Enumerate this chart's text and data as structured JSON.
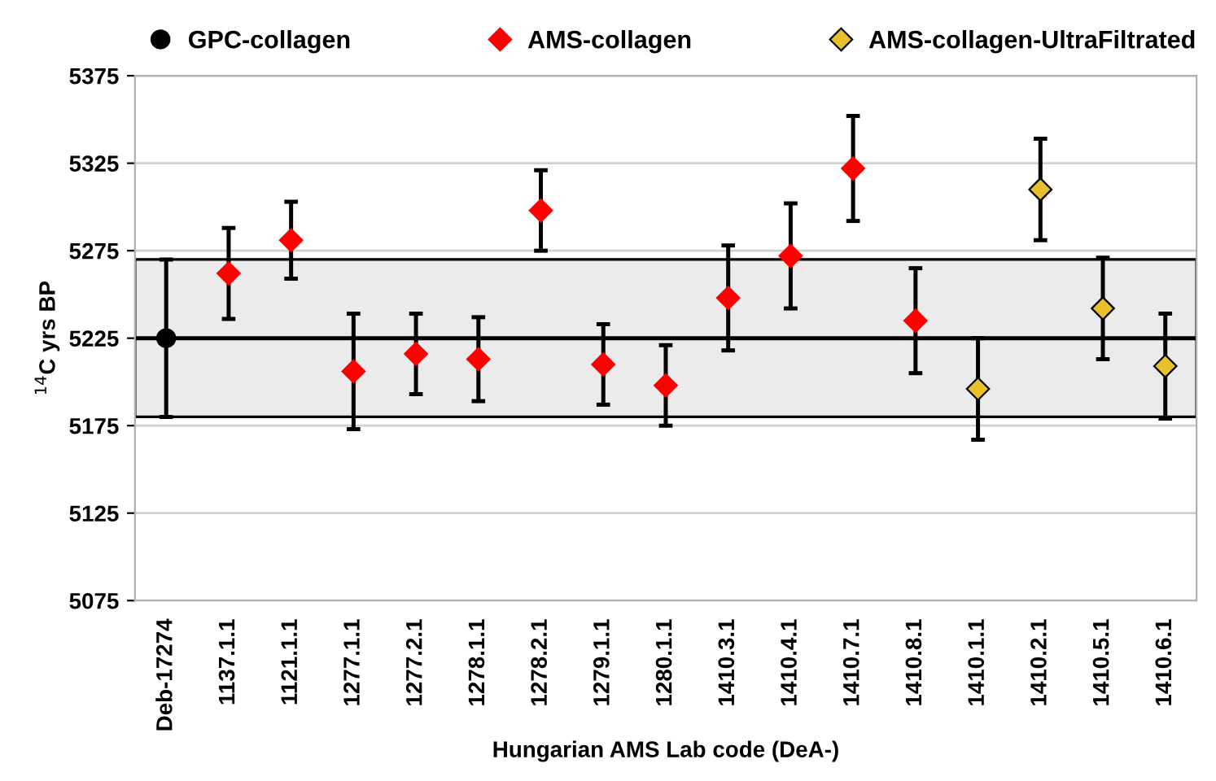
{
  "chart_data": {
    "type": "scatter",
    "xlabel": "Hungarian AMS Lab code (DeA-)",
    "ylabel": "$^{14}$C yrs BP",
    "categories": [
      "Deb-17274",
      "1137.1.1",
      "1121.1.1",
      "1277.1.1",
      "1277.2.1",
      "1278.1.1",
      "1278.2.1",
      "1279.1.1",
      "1280.1.1",
      "1410.3.1",
      "1410.4.1",
      "1410.7.1",
      "1410.8.1",
      "1410.1.1",
      "1410.2.1",
      "1410.5.1",
      "1410.6.1"
    ],
    "series": [
      {
        "name": "GPC-collagen",
        "color": "#000000",
        "marker": "circle",
        "values": [
          5225,
          null,
          null,
          null,
          null,
          null,
          null,
          null,
          null,
          null,
          null,
          null,
          null,
          null,
          null,
          null,
          null
        ],
        "errors": [
          45,
          null,
          null,
          null,
          null,
          null,
          null,
          null,
          null,
          null,
          null,
          null,
          null,
          null,
          null,
          null,
          null
        ]
      },
      {
        "name": "AMS-collagen",
        "color": "#ff0000",
        "marker": "diamond",
        "values": [
          null,
          5262,
          5281,
          5206,
          5216,
          5213,
          5298,
          5210,
          5198,
          5248,
          5272,
          5322,
          5235,
          null,
          null,
          null,
          null
        ],
        "errors": [
          null,
          26,
          22,
          33,
          23,
          24,
          23,
          23,
          23,
          30,
          30,
          30,
          30,
          null,
          null,
          null,
          null
        ]
      },
      {
        "name": "AMS-collagen-UltraFiltrated",
        "color": "#e8c02c",
        "marker": "diamond",
        "values": [
          null,
          null,
          null,
          null,
          null,
          null,
          null,
          null,
          null,
          null,
          null,
          null,
          null,
          5196,
          5310,
          5242,
          5209
        ],
        "errors": [
          null,
          null,
          null,
          null,
          null,
          null,
          null,
          null,
          null,
          null,
          null,
          null,
          null,
          29,
          29,
          29,
          30
        ]
      }
    ],
    "ylim": [
      5075,
      5375
    ],
    "yticks": [
      5075,
      5125,
      5175,
      5225,
      5275,
      5325,
      5375
    ],
    "bands": [
      {
        "axis": "y",
        "from": 5180,
        "to": 5270,
        "color": "#ebebeb"
      }
    ],
    "ref_lines": [
      {
        "axis": "y",
        "value": 5225,
        "color": "#000000"
      }
    ],
    "grid": "y",
    "legend": "top"
  }
}
